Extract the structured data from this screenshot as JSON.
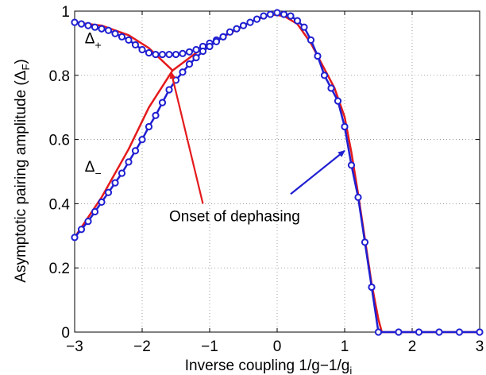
{
  "chart_data": {
    "type": "line",
    "xlabel": "Inverse coupling 1/g−1/g",
    "xlabel_sub": "i",
    "ylabel": "Asymptotic pairing amplitude (Δ",
    "ylabel_sub": "F",
    "ylabel_close": ")",
    "xlim": [
      -3,
      3
    ],
    "ylim": [
      0,
      1
    ],
    "xticks": [
      -3,
      -2,
      -1,
      0,
      1,
      2,
      3
    ],
    "xtick_labels": [
      "−3",
      "−2",
      "−1",
      "0",
      "1",
      "2",
      "3"
    ],
    "yticks": [
      0,
      0.2,
      0.4,
      0.6,
      0.8,
      1
    ],
    "ytick_labels": [
      "0",
      "0.2",
      "0.4",
      "0.6",
      "0.8",
      "1"
    ],
    "grid": true,
    "colors": {
      "red": "#e41a1c",
      "blue": "#1f1fd1"
    },
    "series": [
      {
        "id": "red-upper",
        "style": "line",
        "color": "red",
        "x": [
          -3.0,
          -2.6,
          -2.2,
          -1.9,
          -1.55
        ],
        "y": [
          0.965,
          0.955,
          0.925,
          0.885,
          0.815
        ]
      },
      {
        "id": "red-lower",
        "style": "line",
        "color": "red",
        "x": [
          -3.0,
          -2.6,
          -2.2,
          -1.9,
          -1.55
        ],
        "y": [
          0.295,
          0.42,
          0.57,
          0.7,
          0.815
        ]
      },
      {
        "id": "red-main",
        "style": "line",
        "color": "red",
        "x": [
          -1.55,
          -1.2,
          -0.8,
          -0.4,
          -0.1,
          0.1,
          0.3,
          0.5,
          0.7,
          0.85,
          1.0,
          1.1,
          1.2,
          1.3,
          1.4,
          1.5,
          1.55,
          1.6,
          3.0
        ],
        "y": [
          0.815,
          0.87,
          0.92,
          0.965,
          0.99,
          0.985,
          0.96,
          0.9,
          0.82,
          0.76,
          0.67,
          0.56,
          0.43,
          0.29,
          0.15,
          0.04,
          0.0,
          0.0,
          0.0
        ]
      },
      {
        "id": "blue-markers",
        "style": "line+circles",
        "color": "blue",
        "x": [
          -3.0,
          -2.9,
          -2.8,
          -2.7,
          -2.6,
          -2.5,
          -2.4,
          -2.3,
          -2.2,
          -2.1,
          -2.0,
          -1.9,
          -1.8,
          -1.7,
          -1.6,
          -1.5,
          -1.4,
          -1.3,
          -1.2,
          -1.1,
          -1.0,
          -0.9,
          -0.8,
          -0.7,
          -0.6,
          -0.5,
          -0.4,
          -0.3,
          -0.2,
          -0.1,
          0.0,
          0.1,
          0.2,
          0.3,
          0.4,
          0.5,
          0.6,
          0.7,
          0.8,
          0.9,
          1.0,
          1.1,
          1.2,
          1.3,
          1.4,
          1.5,
          1.8,
          2.1,
          2.4,
          2.7,
          3.0
        ],
        "y": [
          0.295,
          0.32,
          0.345,
          0.375,
          0.405,
          0.435,
          0.465,
          0.495,
          0.53,
          0.565,
          0.6,
          0.64,
          0.675,
          0.715,
          0.755,
          0.785,
          0.81,
          0.835,
          0.855,
          0.875,
          0.89,
          0.905,
          0.92,
          0.935,
          0.945,
          0.955,
          0.965,
          0.975,
          0.985,
          0.99,
          0.995,
          0.99,
          0.985,
          0.97,
          0.95,
          0.91,
          0.86,
          0.8,
          0.76,
          0.72,
          0.64,
          0.52,
          0.42,
          0.28,
          0.14,
          0.0,
          0.0,
          0.0,
          0.0,
          0.0,
          0.0
        ]
      },
      {
        "id": "blue-upper-markers",
        "style": "line+circles",
        "color": "blue",
        "x": [
          -3.0,
          -2.9,
          -2.8,
          -2.7,
          -2.6,
          -2.5,
          -2.4,
          -2.3,
          -2.2,
          -2.1,
          -2.0,
          -1.9,
          -1.8,
          -1.7,
          -1.6,
          -1.5,
          -1.4,
          -1.3,
          -1.2,
          -1.1,
          -1.0,
          -0.9,
          -0.8
        ],
        "y": [
          0.965,
          0.96,
          0.955,
          0.95,
          0.945,
          0.94,
          0.93,
          0.92,
          0.91,
          0.895,
          0.88,
          0.87,
          0.865,
          0.865,
          0.865,
          0.865,
          0.868,
          0.873,
          0.88,
          0.89,
          0.9,
          0.91,
          0.92
        ]
      }
    ],
    "annotations": [
      {
        "id": "delta-plus",
        "text": "Δ",
        "sub": "+",
        "x": -2.85,
        "y": 0.9
      },
      {
        "id": "delta-minus",
        "text": "Δ",
        "sub": "−",
        "x": -2.85,
        "y": 0.5
      },
      {
        "id": "onset-label",
        "text": "Onset of dephasing",
        "x": -1.6,
        "y": 0.345
      }
    ],
    "arrows": [
      {
        "id": "red-arrow",
        "color": "red",
        "from": [
          -1.1,
          0.4
        ],
        "to": [
          -1.57,
          0.81
        ]
      },
      {
        "id": "blue-arrow",
        "color": "blue",
        "from": [
          0.2,
          0.43
        ],
        "to": [
          1.0,
          0.565
        ]
      }
    ]
  }
}
